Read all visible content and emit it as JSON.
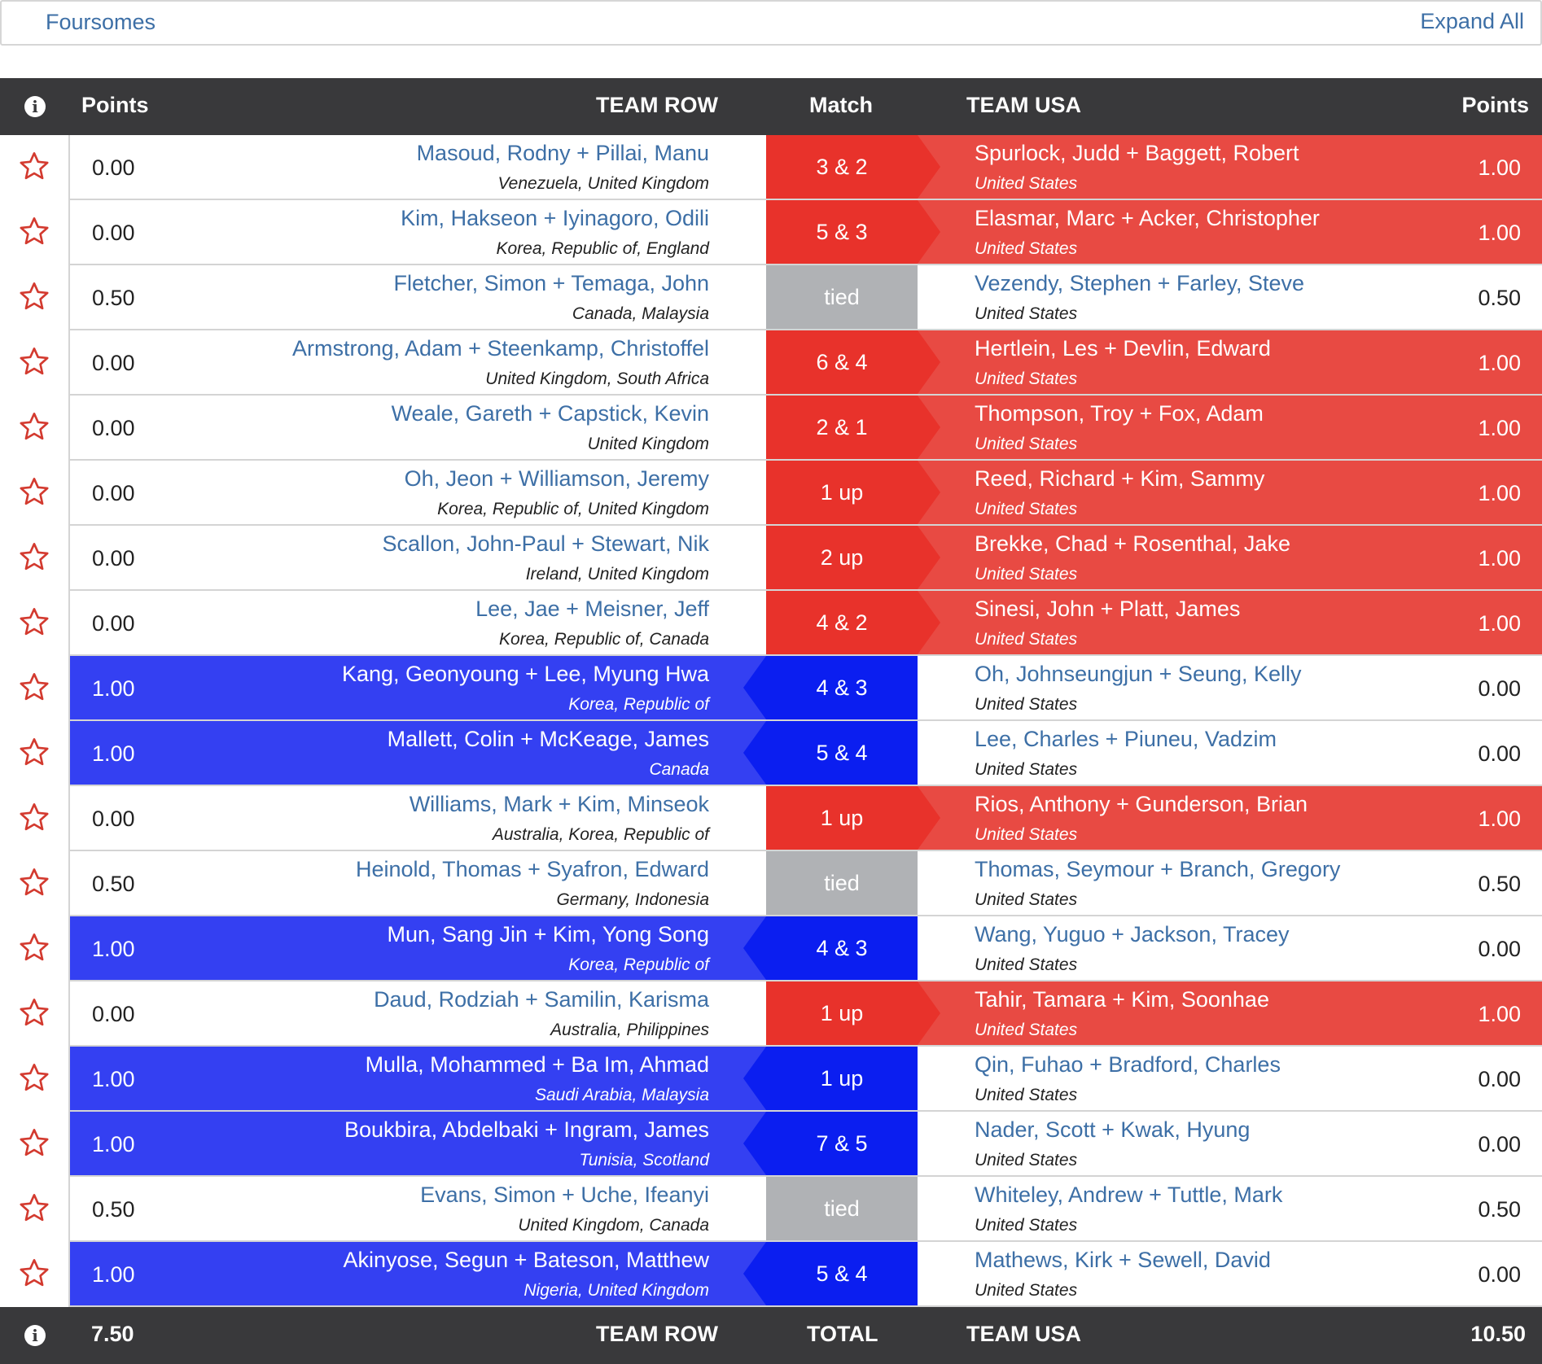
{
  "toolbar": {
    "round_label": "Foursomes",
    "expand_label": "Expand All"
  },
  "header": {
    "left_points": "Points",
    "left_team": "TEAM ROW",
    "match": "Match",
    "right_team": "TEAM USA",
    "right_points": "Points"
  },
  "footer": {
    "left_total": "7.50",
    "left_team": "TEAM ROW",
    "label": "TOTAL",
    "right_team": "TEAM USA",
    "right_total": "10.50"
  },
  "colors": {
    "usa_win": "#e84a43",
    "usa_match": "#e8322b",
    "row_win": "#3440f2",
    "row_match": "#0b1ef0",
    "tied": "#b0b2b5",
    "header_bg": "#39393b",
    "link": "#3d6fa6"
  },
  "matches": [
    {
      "lp": "0.00",
      "ln": "Masoud, Rodny + Pillai, Manu",
      "lc": "Venezuela, United Kingdom",
      "res": "3 & 2",
      "winner": "usa",
      "rn": "Spurlock, Judd + Baggett, Robert",
      "rc": "United States",
      "rp": "1.00"
    },
    {
      "lp": "0.00",
      "ln": "Kim, Hakseon + Iyinagoro, Odili",
      "lc": "Korea, Republic of, England",
      "res": "5 & 3",
      "winner": "usa",
      "rn": "Elasmar, Marc + Acker, Christopher",
      "rc": "United States",
      "rp": "1.00"
    },
    {
      "lp": "0.50",
      "ln": "Fletcher, Simon + Temaga, John",
      "lc": "Canada, Malaysia",
      "res": "tied",
      "winner": "tie",
      "rn": "Vezendy, Stephen + Farley, Steve",
      "rc": "United States",
      "rp": "0.50"
    },
    {
      "lp": "0.00",
      "ln": "Armstrong, Adam + Steenkamp, Christoffel",
      "lc": "United Kingdom, South Africa",
      "res": "6 & 4",
      "winner": "usa",
      "rn": "Hertlein, Les + Devlin, Edward",
      "rc": "United States",
      "rp": "1.00"
    },
    {
      "lp": "0.00",
      "ln": "Weale, Gareth + Capstick, Kevin",
      "lc": "United Kingdom",
      "res": "2 & 1",
      "winner": "usa",
      "rn": "Thompson, Troy + Fox, Adam",
      "rc": "United States",
      "rp": "1.00"
    },
    {
      "lp": "0.00",
      "ln": "Oh, Jeon + Williamson, Jeremy",
      "lc": "Korea, Republic of, United Kingdom",
      "res": "1 up",
      "winner": "usa",
      "rn": "Reed, Richard + Kim, Sammy",
      "rc": "United States",
      "rp": "1.00"
    },
    {
      "lp": "0.00",
      "ln": "Scallon, John-Paul + Stewart, Nik",
      "lc": "Ireland, United Kingdom",
      "res": "2 up",
      "winner": "usa",
      "rn": "Brekke, Chad + Rosenthal, Jake",
      "rc": "United States",
      "rp": "1.00"
    },
    {
      "lp": "0.00",
      "ln": "Lee, Jae + Meisner, Jeff",
      "lc": "Korea, Republic of, Canada",
      "res": "4 & 2",
      "winner": "usa",
      "rn": "Sinesi, John + Platt, James",
      "rc": "United States",
      "rp": "1.00"
    },
    {
      "lp": "1.00",
      "ln": "Kang, Geonyoung + Lee, Myung Hwa",
      "lc": "Korea, Republic of",
      "res": "4 & 3",
      "winner": "row",
      "rn": "Oh, Johnseungjun + Seung, Kelly",
      "rc": "United States",
      "rp": "0.00"
    },
    {
      "lp": "1.00",
      "ln": "Mallett, Colin + McKeage, James",
      "lc": "Canada",
      "res": "5 & 4",
      "winner": "row",
      "rn": "Lee, Charles + Piuneu, Vadzim",
      "rc": "United States",
      "rp": "0.00"
    },
    {
      "lp": "0.00",
      "ln": "Williams, Mark + Kim, Minseok",
      "lc": "Australia, Korea, Republic of",
      "res": "1 up",
      "winner": "usa",
      "rn": "Rios, Anthony + Gunderson, Brian",
      "rc": "United States",
      "rp": "1.00"
    },
    {
      "lp": "0.50",
      "ln": "Heinold, Thomas + Syafron, Edward",
      "lc": "Germany, Indonesia",
      "res": "tied",
      "winner": "tie",
      "rn": "Thomas, Seymour + Branch, Gregory",
      "rc": "United States",
      "rp": "0.50"
    },
    {
      "lp": "1.00",
      "ln": "Mun, Sang Jin + Kim, Yong Song",
      "lc": "Korea, Republic of",
      "res": "4 & 3",
      "winner": "row",
      "rn": "Wang, Yuguo + Jackson, Tracey",
      "rc": "United States",
      "rp": "0.00"
    },
    {
      "lp": "0.00",
      "ln": "Daud, Rodziah + Samilin, Karisma",
      "lc": "Australia, Philippines",
      "res": "1 up",
      "winner": "usa",
      "rn": "Tahir, Tamara + Kim, Soonhae",
      "rc": "United States",
      "rp": "1.00"
    },
    {
      "lp": "1.00",
      "ln": "Mulla, Mohammed + Ba Im, Ahmad",
      "lc": "Saudi Arabia, Malaysia",
      "res": "1 up",
      "winner": "row",
      "rn": "Qin, Fuhao + Bradford, Charles",
      "rc": "United States",
      "rp": "0.00"
    },
    {
      "lp": "1.00",
      "ln": "Boukbira, Abdelbaki + Ingram, James",
      "lc": "Tunisia, Scotland",
      "res": "7 & 5",
      "winner": "row",
      "rn": "Nader, Scott + Kwak, Hyung",
      "rc": "United States",
      "rp": "0.00"
    },
    {
      "lp": "0.50",
      "ln": "Evans, Simon + Uche, Ifeanyi",
      "lc": "United Kingdom, Canada",
      "res": "tied",
      "winner": "tie",
      "rn": "Whiteley, Andrew + Tuttle, Mark",
      "rc": "United States",
      "rp": "0.50"
    },
    {
      "lp": "1.00",
      "ln": "Akinyose, Segun + Bateson, Matthew",
      "lc": "Nigeria, United Kingdom",
      "res": "5 & 4",
      "winner": "row",
      "rn": "Mathews, Kirk + Sewell, David",
      "rc": "United States",
      "rp": "0.00"
    }
  ]
}
